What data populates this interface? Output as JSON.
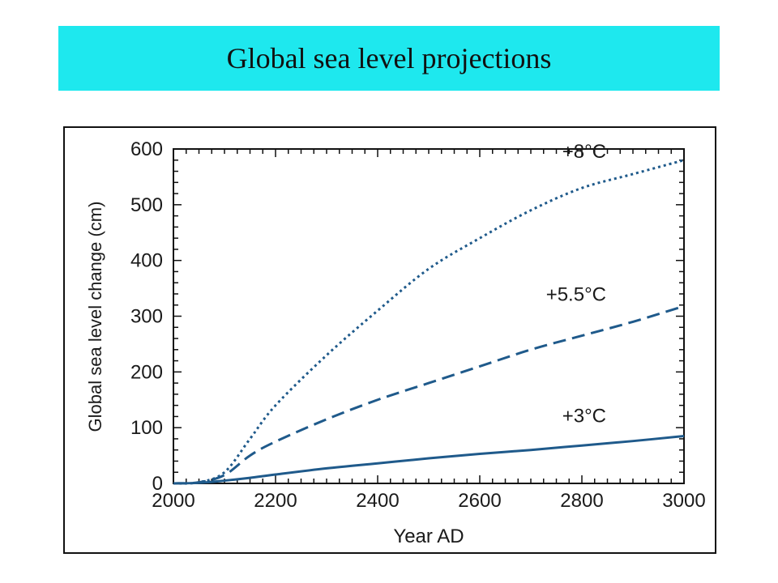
{
  "title": "Global sea level projections",
  "colors": {
    "banner": "#1ee8ee",
    "series": "#1f5a8b"
  },
  "chart_data": {
    "type": "line",
    "xlabel": "Year AD",
    "ylabel": "Global sea level change (cm)",
    "xlim": [
      2000,
      3000
    ],
    "ylim": [
      0,
      600
    ],
    "xticks": [
      2000,
      2200,
      2400,
      2600,
      2800,
      3000
    ],
    "yticks": [
      0,
      100,
      200,
      300,
      400,
      500,
      600
    ],
    "xtick_labels": [
      "2000",
      "2200",
      "2400",
      "2600",
      "2800",
      "3000"
    ],
    "ytick_labels": [
      "0",
      "100",
      "200",
      "300",
      "400",
      "500",
      "600"
    ],
    "grid": false,
    "series": [
      {
        "name": "+3°C",
        "style": "solid",
        "x": [
          2000,
          2050,
          2100,
          2150,
          2200,
          2300,
          2400,
          2500,
          2600,
          2700,
          2800,
          2900,
          3000
        ],
        "y": [
          0,
          1,
          5,
          10,
          16,
          27,
          36,
          45,
          53,
          60,
          68,
          76,
          85
        ]
      },
      {
        "name": "+5.5°C",
        "style": "dashed",
        "x": [
          2000,
          2050,
          2100,
          2150,
          2200,
          2300,
          2400,
          2500,
          2600,
          2700,
          2800,
          2900,
          3000
        ],
        "y": [
          0,
          2,
          15,
          50,
          75,
          115,
          150,
          180,
          210,
          240,
          265,
          290,
          318
        ]
      },
      {
        "name": "+8°C",
        "style": "dotted",
        "x": [
          2000,
          2050,
          2100,
          2150,
          2200,
          2300,
          2400,
          2500,
          2600,
          2700,
          2800,
          2900,
          3000
        ],
        "y": [
          0,
          2,
          20,
          80,
          140,
          230,
          310,
          385,
          440,
          490,
          530,
          555,
          580
        ]
      }
    ]
  }
}
